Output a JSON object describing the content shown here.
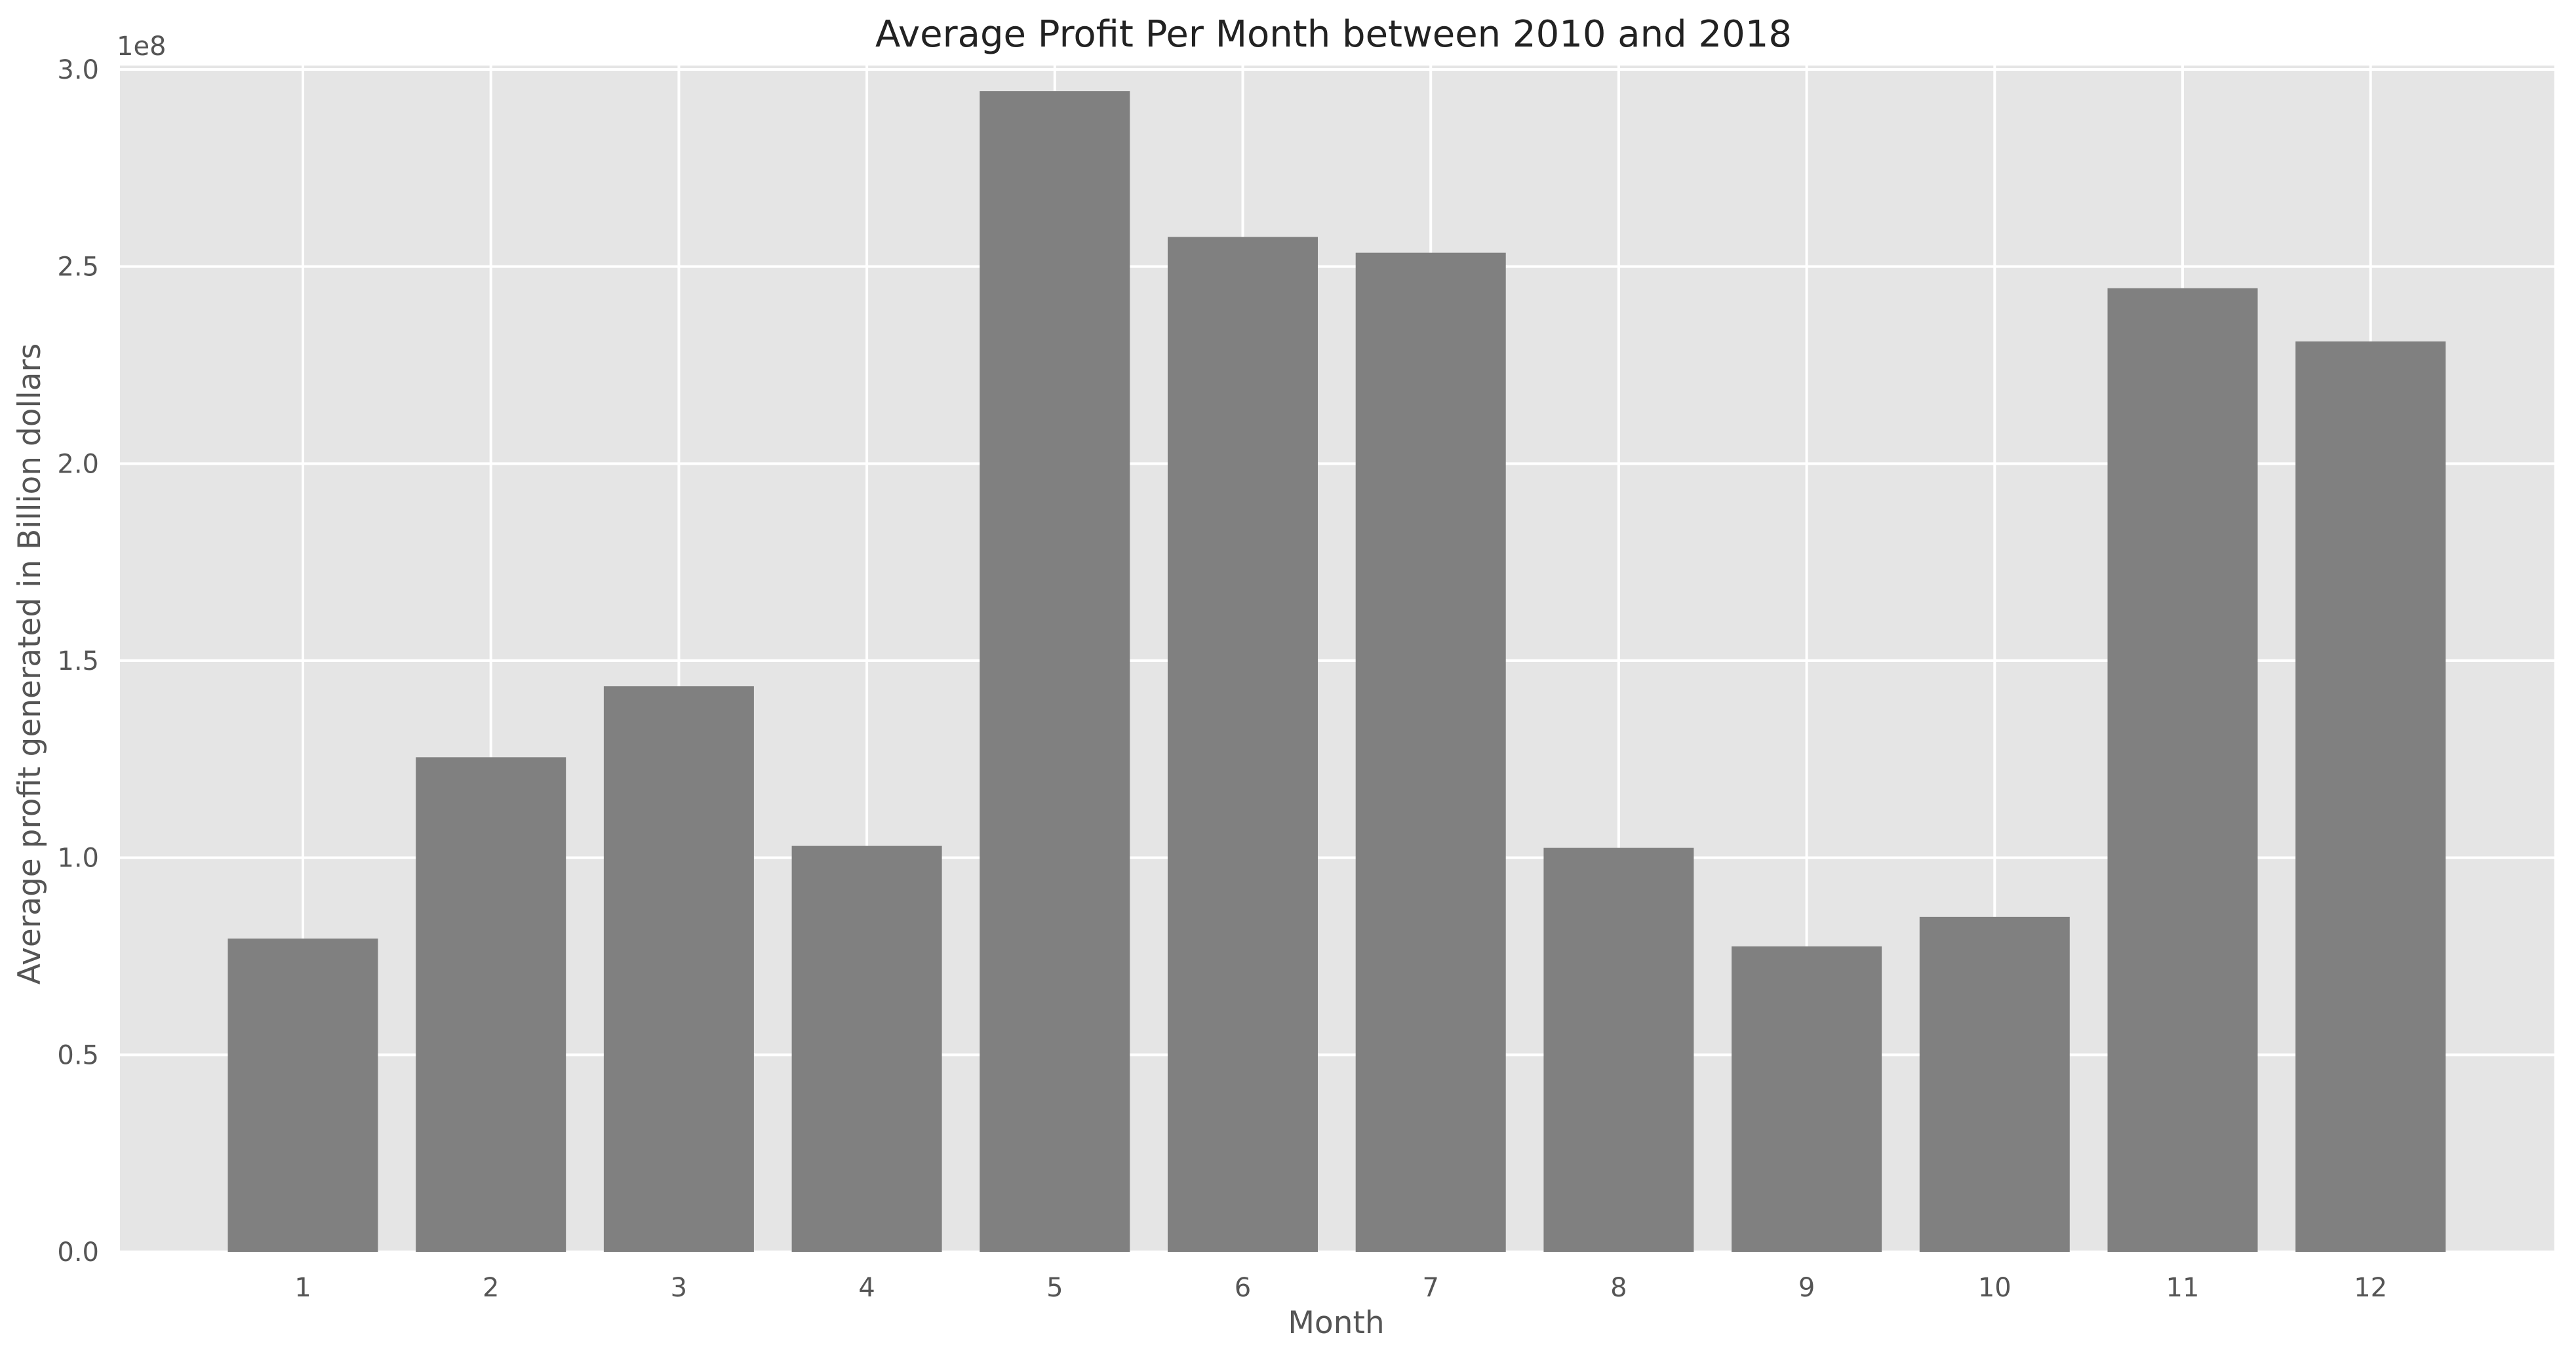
{
  "chart_data": {
    "type": "bar",
    "title": "Average Profit Per Month between 2010 and 2018",
    "xlabel": "Month",
    "ylabel": "Average profit generated in Billion dollars",
    "y_offset_label": "1e8",
    "categories": [
      "1",
      "2",
      "3",
      "4",
      "5",
      "6",
      "7",
      "8",
      "9",
      "10",
      "11",
      "12"
    ],
    "values": [
      79500000,
      125500000,
      143500000,
      103000000,
      294500000,
      257500000,
      253500000,
      102500000,
      77500000,
      85000000,
      244500000,
      231000000
    ],
    "ylim": [
      0,
      301000000
    ],
    "y_ticks": [
      0,
      50000000,
      100000000,
      150000000,
      200000000,
      250000000,
      300000000
    ],
    "y_tick_labels": [
      "0.0",
      "0.5",
      "1.0",
      "1.5",
      "2.0",
      "2.5",
      "3.0"
    ],
    "grid": true,
    "colors": {
      "bar": "#808080",
      "plot_background": "#e5e5e5",
      "grid": "#ffffff"
    }
  }
}
